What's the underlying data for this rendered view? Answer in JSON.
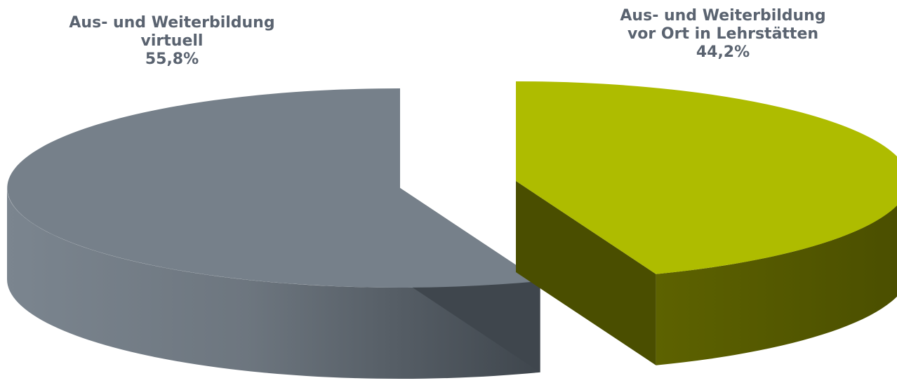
{
  "chart_data": {
    "type": "pie",
    "style": "3d-exploded",
    "slices": [
      {
        "label_lines": [
          "Aus- und Weiterbildung",
          "virtuell"
        ],
        "value": 55.8,
        "value_label": "55,8%",
        "color_top": "#76808a",
        "color_side_light": "#7b858f",
        "color_side_dark": "#3f464d"
      },
      {
        "label_lines": [
          "Aus- und Weiterbildung",
          "vor Ort in Lehrstätten"
        ],
        "value": 44.2,
        "value_label": "44,2%",
        "color_top": "#aebc00",
        "color_side_light": "#5d6200",
        "color_side_dark": "#4a4e00"
      }
    ]
  }
}
